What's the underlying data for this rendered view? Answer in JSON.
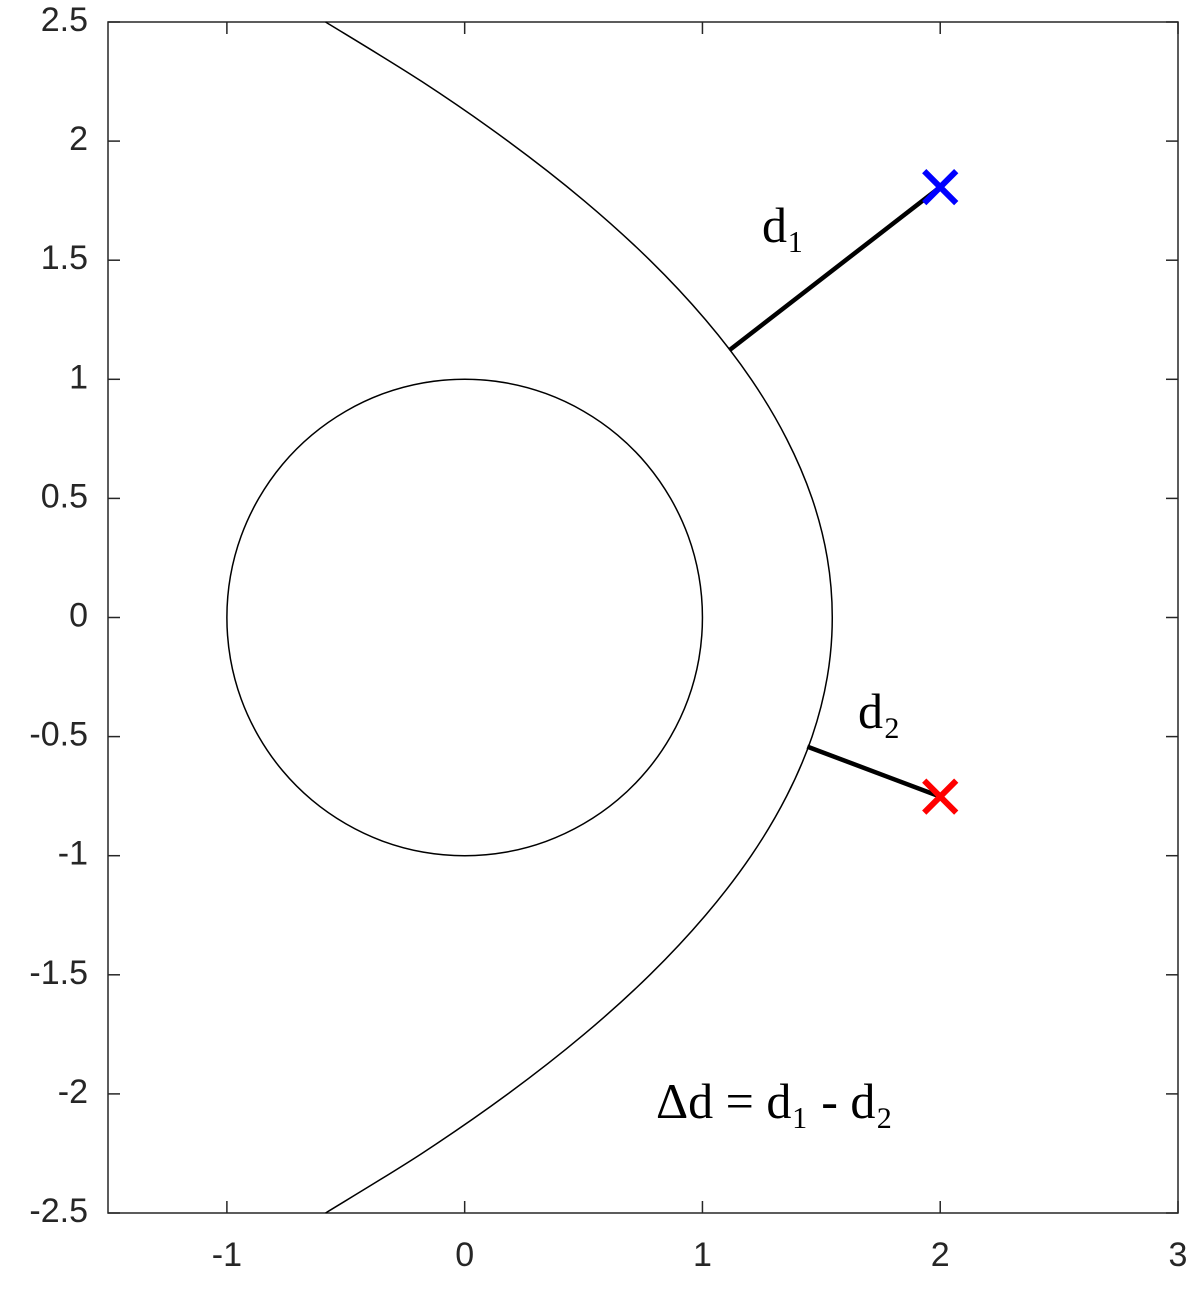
{
  "chart_data": {
    "type": "line",
    "xlim": [
      -1.5,
      3
    ],
    "ylim": [
      -2.5,
      2.5
    ],
    "xticks": [
      -1,
      0,
      1,
      2,
      3
    ],
    "yticks": [
      -2.5,
      -2,
      -1.5,
      -1,
      -0.5,
      0,
      0.5,
      1,
      1.5,
      2,
      2.5
    ],
    "grid": false,
    "box": true,
    "annotations": [
      "d₁",
      "d₂",
      "Δd = d₁ - d₂"
    ],
    "series": [
      {
        "color": "#000000",
        "style": "thin",
        "closed": true,
        "x": [
          1,
          0.985,
          0.94,
          0.866,
          0.766,
          0.643,
          0.5,
          0.342,
          0.174,
          0,
          -0.174,
          -0.342,
          -0.5,
          -0.643,
          -0.766,
          -0.866,
          -0.94,
          -0.985,
          -1,
          -0.985,
          -0.94,
          -0.866,
          -0.766,
          -0.643,
          -0.5,
          -0.342,
          -0.174,
          0,
          0.174,
          0.342,
          0.5,
          0.643,
          0.766,
          0.866,
          0.94,
          0.985
        ],
        "values": [
          0,
          0.174,
          0.342,
          0.5,
          0.643,
          0.766,
          0.866,
          0.94,
          0.985,
          1,
          0.985,
          0.94,
          0.866,
          0.766,
          0.643,
          0.5,
          0.342,
          0.174,
          0,
          -0.174,
          -0.342,
          -0.5,
          -0.643,
          -0.766,
          -0.866,
          -0.94,
          -0.985,
          -1,
          -0.985,
          -0.94,
          -0.866,
          -0.766,
          -0.643,
          -0.5,
          -0.342,
          -0.174
        ]
      },
      {
        "color": "#000000",
        "style": "thin",
        "closed": false,
        "x": [
          -0.585,
          -0.18,
          0.182,
          0.502,
          0.779,
          1.013,
          1.205,
          1.354,
          1.461,
          1.525,
          1.546,
          1.525,
          1.461,
          1.354,
          1.205,
          1.013,
          0.779,
          0.502,
          0.182,
          -0.18,
          -0.585
        ],
        "values": [
          2.5,
          2.25,
          2,
          1.75,
          1.5,
          1.25,
          1,
          0.75,
          0.5,
          0.25,
          0,
          -0.25,
          -0.5,
          -0.75,
          -1,
          -1.25,
          -1.5,
          -1.75,
          -2,
          -2.25,
          -2.5
        ]
      },
      {
        "color": "#000000",
        "style": "thick",
        "closed": false,
        "x": [
          1.113,
          2
        ],
        "values": [
          1.122,
          1.807
        ]
      },
      {
        "color": "#000000",
        "style": "thick",
        "closed": false,
        "x": [
          1.441,
          2
        ],
        "values": [
          -0.542,
          -0.752
        ]
      },
      {
        "color": "#0000ff",
        "marker": "x",
        "x": [
          2
        ],
        "values": [
          1.807
        ]
      },
      {
        "color": "#ff0000",
        "marker": "x",
        "x": [
          2
        ],
        "values": [
          -0.752
        ]
      }
    ]
  }
}
